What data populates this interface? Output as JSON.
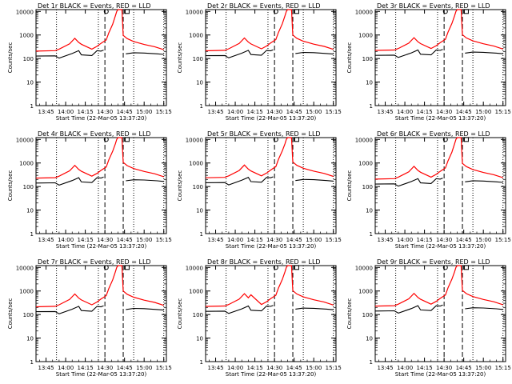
{
  "chart_data": {
    "type": "line",
    "layout": "3x3 grid",
    "y_scale": "log",
    "ylim": [
      1,
      12000
    ],
    "y_ticks": [
      1,
      10,
      100,
      1000,
      10000
    ],
    "y_tick_labels": [
      "1",
      "10",
      "100",
      "1000",
      "10000"
    ],
    "xlim": [
      "13:37:20",
      "15:17:00"
    ],
    "x_tick_labels": [
      "13:45",
      "14:00",
      "14:15",
      "14:30",
      "14:45",
      "15:00",
      "15:15"
    ],
    "ylabel": "Counts/sec",
    "xlabel": "Start Time (22-Mar-05 13:37:20)",
    "series_colors": {
      "events": "#000000",
      "lld": "#ff0000"
    },
    "dotted_lines": [
      "13:53",
      "14:25",
      "14:52",
      "15:15"
    ],
    "dashed_lines": [
      "14:30",
      "14:44"
    ],
    "markers": [
      {
        "time": "14:31",
        "value": 10000,
        "shape": "circle"
      },
      {
        "time": "14:47",
        "value": 10000,
        "shape": "square"
      }
    ],
    "shape": {
      "events": [
        [
          "13:37:20",
          145
        ],
        [
          "13:52",
          148
        ],
        [
          "13:55",
          118
        ],
        [
          "14:05",
          185
        ],
        [
          "14:10",
          245
        ],
        [
          "14:12",
          162
        ],
        [
          "14:20",
          152
        ],
        [
          "14:24",
          245
        ],
        [
          "14:27",
          235
        ],
        [
          "14:29",
          260
        ]
      ],
      "lld": [
        [
          "13:37:20",
          235
        ],
        [
          "13:52",
          245
        ],
        [
          "13:55",
          285
        ],
        [
          "14:03",
          480
        ],
        [
          "14:07",
          820
        ],
        [
          "14:10",
          550
        ],
        [
          "14:12",
          460
        ],
        [
          "14:20",
          285
        ],
        [
          "14:24",
          375
        ],
        [
          "14:27",
          500
        ],
        [
          "14:31",
          700
        ],
        [
          "14:33",
          1400
        ],
        [
          "14:36",
          3300
        ],
        [
          "14:38",
          6500
        ],
        [
          "14:39",
          10000
        ],
        [
          "14:40",
          12000
        ],
        [
          "14:43",
          12000
        ],
        [
          "14:44",
          1100
        ],
        [
          "14:47",
          800
        ],
        [
          "14:52",
          600
        ],
        [
          "15:00",
          450
        ],
        [
          "15:08",
          360
        ],
        [
          "15:15",
          270
        ]
      ],
      "events_post": [
        [
          "14:46",
          180
        ],
        [
          "14:52",
          200
        ],
        [
          "15:00",
          195
        ],
        [
          "15:10",
          180
        ],
        [
          "15:15",
          170
        ]
      ]
    },
    "panels": [
      {
        "title": "Det 1r BLACK = Events, RED = LLD"
      },
      {
        "title": "Det 2r BLACK = Events, RED = LLD"
      },
      {
        "title": "Det 3r BLACK = Events, RED = LLD"
      },
      {
        "title": "Det 4r BLACK = Events, RED = LLD"
      },
      {
        "title": "Det 5r BLACK = Events, RED = LLD"
      },
      {
        "title": "Det 6r BLACK = Events, RED = LLD"
      },
      {
        "title": "Det 7r BLACK = Events, RED = LLD"
      },
      {
        "title": "Det 8r BLACK = Events, RED = LLD"
      },
      {
        "title": "Det 9r BLACK = Events, RED = LLD"
      }
    ]
  }
}
